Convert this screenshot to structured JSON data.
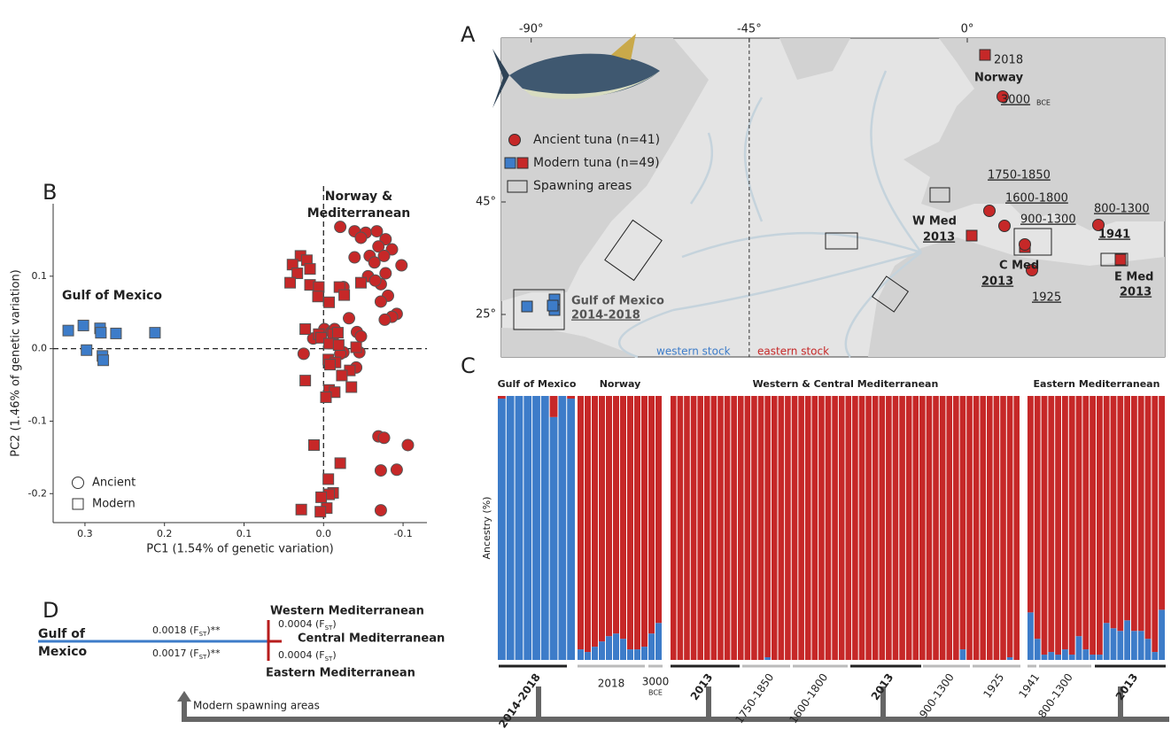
{
  "panel_labels": [
    "A",
    "B",
    "C",
    "D"
  ],
  "chart_data": [
    {
      "type": "scatter",
      "annotations": {
        "left": "Gulf of Mexico",
        "right": [
          "Norway &",
          "Mediterranean"
        ]
      },
      "xlabel": "PC1 (1.54% of genetic variation)",
      "ylabel": "PC2 (1.46% of genetic variation)",
      "xlim": [
        0.34,
        -0.13
      ],
      "ylim": [
        -0.24,
        0.2
      ],
      "xticks": [
        0.3,
        0.2,
        0.1,
        {
          "value": 0,
          "label": "0.0"
        },
        -0.1
      ],
      "yticks": [
        0.1,
        {
          "value": 0,
          "label": "0.0"
        },
        -0.1,
        -0.2
      ],
      "zero_lines": true,
      "series": [
        {
          "name": "Ancient",
          "marker": "circle",
          "color": "#c62828",
          "x": [
            -0.021,
            -0.039,
            -0.053,
            -0.067,
            -0.047,
            -0.078,
            -0.069,
            -0.086,
            -0.039,
            -0.058,
            -0.076,
            -0.098,
            -0.064,
            -0.078,
            -0.056,
            -0.072,
            -0.025,
            -0.065,
            -0.081,
            -0.072,
            -0.092,
            -0.086,
            -0.077,
            -0.001,
            -0.01,
            -0.032,
            -0.014,
            -0.042,
            -0.047,
            0.013,
            0.025,
            -0.025,
            -0.045,
            -0.021,
            -0.041,
            -0.069,
            -0.076,
            -0.106,
            -0.072,
            -0.092,
            -0.072
          ],
          "y": [
            0.168,
            0.162,
            0.16,
            0.162,
            0.153,
            0.151,
            0.141,
            0.137,
            0.126,
            0.128,
            0.128,
            0.115,
            0.119,
            0.104,
            0.1,
            0.089,
            0.085,
            0.094,
            0.073,
            0.065,
            0.048,
            0.044,
            0.04,
            0.027,
            0.023,
            0.042,
            0.027,
            0.023,
            0.017,
            0.014,
            -0.007,
            -0.005,
            -0.005,
            -0.007,
            -0.026,
            -0.121,
            -0.123,
            -0.133,
            -0.168,
            -0.167,
            -0.223
          ]
        },
        {
          "name": "Modern",
          "marker": "square",
          "groups": [
            {
              "color": "#3d7cc9",
              "x": [
                0.321,
                0.302,
                0.298,
                0.281,
                0.28,
                0.278,
                0.277,
                0.261,
                0.212
              ],
              "y": [
                0.025,
                0.032,
                -0.002,
                0.028,
                0.022,
                -0.01,
                -0.016,
                0.021,
                0.022
              ]
            },
            {
              "color": "#c62828",
              "x": [
                0.029,
                0.021,
                0.039,
                0.017,
                0.033,
                0.042,
                0.017,
                0.006,
                -0.02,
                -0.047,
                -0.026,
                0.007,
                -0.007,
                0.023,
                0.006,
                0.003,
                -0.012,
                -0.018,
                -0.007,
                -0.019,
                -0.041,
                -0.006,
                -0.015,
                -0.008,
                -0.033,
                -0.023,
                -0.035,
                -0.007,
                -0.014,
                -0.003,
                0.023,
                0.012,
                -0.021,
                -0.006,
                -0.012,
                -0.007,
                0.003,
                -0.004,
                0.028,
                0.004
              ],
              "y": [
                0.128,
                0.122,
                0.116,
                0.11,
                0.104,
                0.091,
                0.088,
                0.085,
                0.085,
                0.091,
                0.074,
                0.072,
                0.064,
                0.027,
                0.02,
                0.015,
                0.02,
                0.022,
                0.007,
                0.005,
                0.002,
                -0.015,
                -0.019,
                -0.022,
                -0.03,
                -0.037,
                -0.053,
                -0.057,
                -0.06,
                -0.067,
                -0.044,
                -0.133,
                -0.158,
                -0.18,
                -0.199,
                -0.201,
                -0.205,
                -0.22,
                -0.222,
                -0.225
              ]
            }
          ]
        }
      ]
    },
    {
      "type": "stacked_bar",
      "ylabel": "Ancestry (%)",
      "ylim": [
        0,
        100
      ],
      "groups": [
        {
          "title": "Gulf of Mexico",
          "series": [
            {
              "color": "#3d7cc9",
              "values": [
                99,
                100,
                100,
                100,
                100,
                100,
                92,
                100,
                99
              ]
            },
            {
              "color": "#c62828",
              "values": [
                1,
                0,
                0,
                0,
                0,
                0,
                8,
                0,
                1
              ]
            }
          ]
        },
        {
          "title": "Norway",
          "series": [
            {
              "color": "#3d7cc9",
              "values": [
                4,
                3,
                5,
                7,
                9,
                10,
                8,
                4,
                4,
                5,
                10,
                14
              ]
            },
            {
              "color": "#c62828",
              "values": [
                96,
                97,
                95,
                93,
                91,
                90,
                92,
                96,
                96,
                95,
                90,
                86
              ]
            }
          ]
        },
        {
          "title": "Western & Central Mediterranean",
          "series": [
            {
              "color": "#3d7cc9",
              "values": [
                0,
                0,
                0,
                0,
                0,
                0,
                0,
                0,
                0,
                0,
                0,
                0,
                0,
                0,
                1,
                0,
                0,
                0,
                0,
                0,
                0,
                0,
                0,
                0,
                0,
                0,
                0,
                0,
                0,
                0,
                0,
                0,
                0,
                0,
                0,
                0,
                0,
                0,
                0,
                0,
                0,
                0,
                0,
                4,
                0,
                0,
                0,
                0,
                0,
                0,
                1,
                0
              ]
            },
            {
              "color": "#c62828",
              "values": [
                100,
                100,
                100,
                100,
                100,
                100,
                100,
                100,
                100,
                100,
                100,
                100,
                100,
                100,
                99,
                100,
                100,
                100,
                100,
                100,
                100,
                100,
                100,
                100,
                100,
                100,
                100,
                100,
                100,
                100,
                100,
                100,
                100,
                100,
                100,
                100,
                100,
                100,
                100,
                100,
                100,
                100,
                100,
                96,
                100,
                100,
                100,
                100,
                100,
                100,
                99,
                100
              ]
            }
          ]
        },
        {
          "title": "Eastern Mediterranean",
          "series": [
            {
              "color": "#3d7cc9",
              "values": [
                18,
                8,
                2,
                3,
                2,
                4,
                2,
                9,
                4,
                2,
                2,
                14,
                12,
                11,
                15,
                11,
                11,
                8,
                3,
                19
              ]
            },
            {
              "color": "#c62828",
              "values": [
                82,
                92,
                98,
                97,
                98,
                96,
                98,
                91,
                96,
                98,
                98,
                86,
                88,
                89,
                85,
                89,
                89,
                92,
                97,
                81
              ]
            }
          ]
        }
      ],
      "periods": [
        {
          "label": "2014-2018",
          "bold": true
        },
        {
          "label": "2018"
        },
        {
          "label": "3000",
          "sub": "BCE"
        },
        {
          "label": "2013",
          "bold": true
        },
        {
          "label": "1750-1850"
        },
        {
          "label": "1600-1800"
        },
        {
          "label": "2013",
          "bold": true
        },
        {
          "label": "900-1300"
        },
        {
          "label": "1925"
        },
        {
          "label": "1941"
        },
        {
          "label": "800-1300"
        },
        {
          "label": "2013",
          "bold": true
        }
      ]
    }
  ],
  "map": {
    "lon_ticks": [
      {
        "value": -90,
        "label": "-90°"
      },
      {
        "value": -45,
        "label": "-45°"
      },
      {
        "value": 0,
        "label": "0°"
      }
    ],
    "lat_ticks": [
      {
        "value": 45,
        "label": "45°"
      },
      {
        "value": 25,
        "label": "25°"
      }
    ],
    "legend": [
      "Ancient tuna (n=41)",
      "Modern tuna (n=49)",
      "Spawning areas"
    ],
    "labels": {
      "norway": "Norway",
      "d2018": "2018",
      "d3000": "3000",
      "bce": "BCE",
      "d1750": "1750-1850",
      "d1600": "1600-1800",
      "d900": "900-1300",
      "d800": "800-1300",
      "d1941": "1941",
      "wmed": "W Med",
      "wmed_y": "2013",
      "cmed": "C Med",
      "cmed_y": "2013",
      "d1925": "1925",
      "emed": "E Med",
      "emed_y": "2013",
      "gulf": "Gulf of Mexico",
      "gulf_y": "2014-2018",
      "west": "western stock",
      "east": "eastern stock"
    }
  },
  "tree": {
    "root": [
      "Gulf of",
      "Mexico"
    ],
    "leaves": [
      "Western Mediterranean",
      "Central Mediterranean",
      "Eastern Mediterranean"
    ],
    "branches": [
      [
        "0.0018 (F",
        "ST",
        ")**"
      ],
      [
        "0.0017 (F",
        "ST",
        ")**"
      ],
      [
        "0.0004 (F",
        "ST",
        ")"
      ],
      [
        "0.0004 (F",
        "ST",
        ")"
      ]
    ]
  },
  "arrow_label": "Modern spawning areas"
}
